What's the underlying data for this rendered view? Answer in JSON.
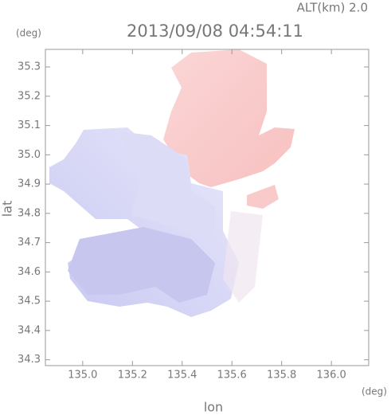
{
  "chart_data": {
    "type": "map",
    "title": "2013/09/08 04:54:11",
    "subtitle": "ALT(km) 2.0",
    "y_unit": "(deg)",
    "x_unit": "(deg)",
    "x_label": "lon",
    "y_label": "lat",
    "xlim": [
      134.85,
      136.15
    ],
    "ylim": [
      34.28,
      35.36
    ],
    "xticks": [
      {
        "value": 135,
        "label": "135.0"
      },
      135.2,
      135.4,
      135.6,
      135.8,
      {
        "value": 136,
        "label": "136.0"
      }
    ],
    "yticks": [
      34.3,
      34.4,
      34.5,
      34.6,
      34.7,
      34.8,
      34.9,
      {
        "value": 35,
        "label": "35.0"
      },
      35.1,
      35.2,
      35.3
    ]
  }
}
